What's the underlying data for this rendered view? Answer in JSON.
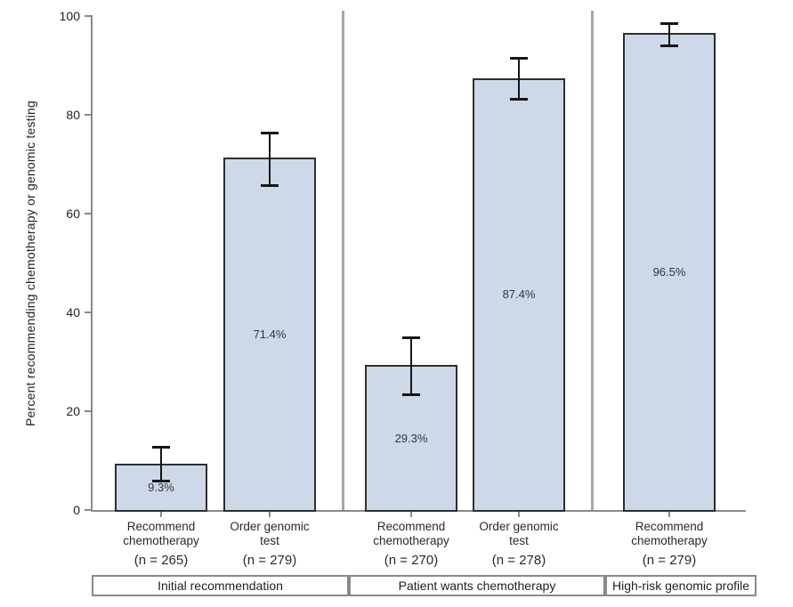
{
  "chart_data": {
    "type": "bar",
    "title": "",
    "ylabel": "Percent recommending chemotherapy or genomic testing",
    "xlabel": "",
    "ylim": [
      0,
      100
    ],
    "yticks": [
      "0",
      "20",
      "40",
      "60",
      "80",
      "100"
    ],
    "grid": false,
    "legend": "none",
    "bar_fill": "#cdd9e9",
    "bar_border": "#2e2e2e",
    "error_bar_color": "#151515",
    "axis_color": "#8a8a8a",
    "divider_color": "#a3a7ad",
    "groups": [
      {
        "label": "Initial recommendation",
        "bars": [
          {
            "category_lines": [
              "Recommend",
              "chemotherapy"
            ],
            "n_label": "(n = 265)",
            "value": 9.3,
            "value_label": "9.3%",
            "ci_low": 5.9,
            "ci_high": 12.8
          },
          {
            "category_lines": [
              "Order genomic",
              "test"
            ],
            "n_label": "(n = 279)",
            "value": 71.4,
            "value_label": "71.4%",
            "ci_low": 65.8,
            "ci_high": 76.4
          }
        ]
      },
      {
        "label": "Patient wants chemotherapy",
        "bars": [
          {
            "category_lines": [
              "Recommend",
              "chemotherapy"
            ],
            "n_label": "(n = 270)",
            "value": 29.3,
            "value_label": "29.3%",
            "ci_low": 23.5,
            "ci_high": 35.0
          },
          {
            "category_lines": [
              "Order genomic",
              "test"
            ],
            "n_label": "(n = 278)",
            "value": 87.4,
            "value_label": "87.4%",
            "ci_low": 83.2,
            "ci_high": 91.5
          }
        ]
      },
      {
        "label": "High-risk genomic profile",
        "bars": [
          {
            "category_lines": [
              "Recommend",
              "chemotherapy"
            ],
            "n_label": "(n = 279)",
            "value": 96.5,
            "value_label": "96.5%",
            "ci_low": 94.1,
            "ci_high": 98.5
          }
        ]
      }
    ]
  }
}
